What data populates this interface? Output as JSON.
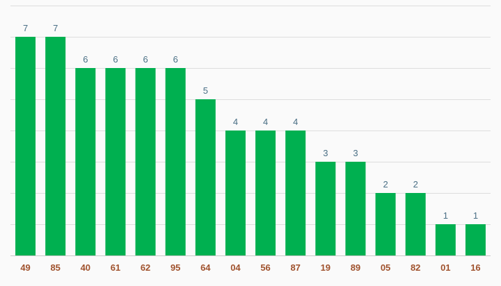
{
  "chart_data": {
    "type": "bar",
    "title": "",
    "xlabel": "",
    "ylabel": "",
    "categories": [
      "49",
      "85",
      "40",
      "61",
      "62",
      "95",
      "64",
      "04",
      "56",
      "87",
      "19",
      "89",
      "05",
      "82",
      "01",
      "16"
    ],
    "values": [
      7,
      7,
      6,
      6,
      6,
      6,
      5,
      4,
      4,
      4,
      3,
      3,
      2,
      2,
      1,
      1
    ],
    "ylim": [
      0,
      8
    ],
    "grid": true,
    "show_y_ticks": false,
    "data_labels": true,
    "colors": {
      "bar": "#00b050",
      "value_label": "#4a6f85",
      "tick_label": "#a0522d",
      "grid": "#dddddd",
      "axis": "#c8c8c8",
      "background": "#fafafa"
    }
  }
}
